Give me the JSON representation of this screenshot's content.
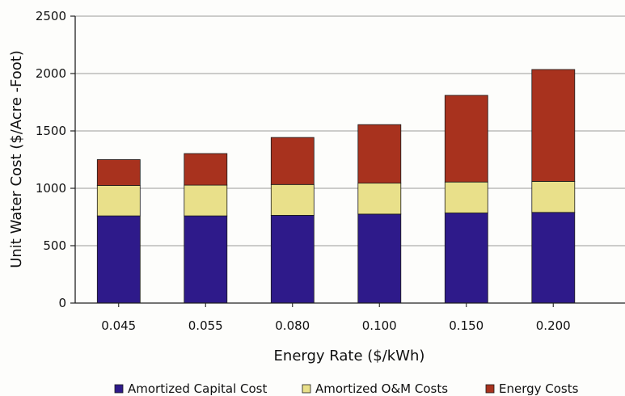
{
  "chart_data": {
    "type": "bar",
    "stacked": true,
    "categories": [
      "0.045",
      "0.055",
      "0.080",
      "0.100",
      "0.150",
      "0.200"
    ],
    "series": [
      {
        "name": "Amortized Capital Cost",
        "color": "#2e1a8a",
        "values": [
          760,
          760,
          765,
          775,
          785,
          790
        ]
      },
      {
        "name": "Amortized O&M Costs",
        "color": "#e9e08a",
        "values": [
          265,
          268,
          268,
          270,
          270,
          270
        ]
      },
      {
        "name": "Energy Costs",
        "color": "#a8321e",
        "values": [
          225,
          275,
          410,
          510,
          755,
          975
        ]
      }
    ],
    "xlabel": "Energy Rate ($/kWh)",
    "ylabel": "Unit Water Cost ($/Acre -Foot)",
    "ylim": [
      0,
      2500
    ],
    "yticks": [
      "0",
      "500",
      "1000",
      "1500",
      "2000",
      "2500"
    ],
    "grid": true,
    "legend": "bottom"
  }
}
